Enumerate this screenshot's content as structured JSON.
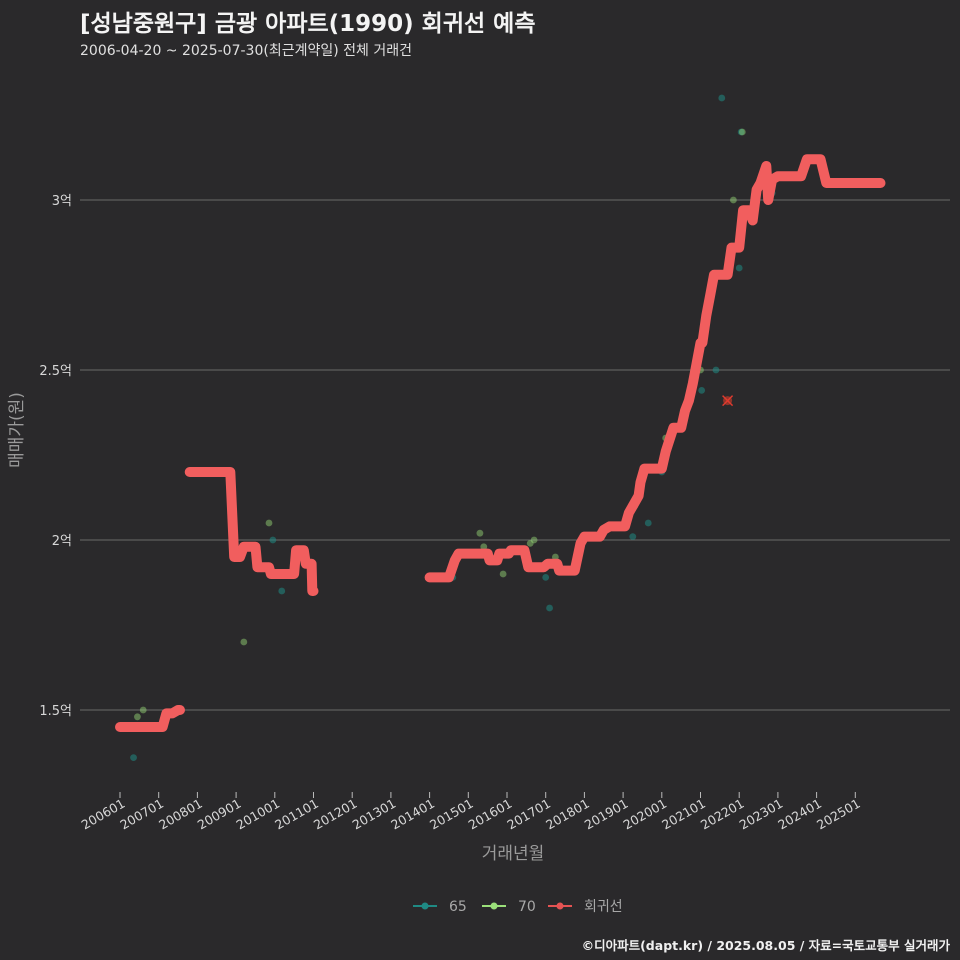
{
  "chart_data": {
    "type": "scatter+step-line",
    "title": "[성남중원구] 금광 아파트(1990) 회귀선 예측",
    "subtitle": "2006-04-20 ~ 2025-07-30(최근계약일) 전체 거래건",
    "xlabel": "거래년월",
    "ylabel": "매매가(원)",
    "caption": "©디아파트(dapt.kr) / 2025.08.05 / 자료=국토교통부 실거래가",
    "x_range": [
      2005.75,
      2026.5
    ],
    "ylim": [
      1.28,
      3.33
    ],
    "y_ticks": [
      {
        "value": 1.5,
        "label": "1.5억"
      },
      {
        "value": 2.0,
        "label": "2억"
      },
      {
        "value": 2.5,
        "label": "2.5억"
      },
      {
        "value": 3.0,
        "label": "3억"
      }
    ],
    "x_ticks": [
      {
        "value": 2006,
        "label": "200601"
      },
      {
        "value": 2007,
        "label": "200701"
      },
      {
        "value": 2008,
        "label": "200801"
      },
      {
        "value": 2009,
        "label": "200901"
      },
      {
        "value": 2010,
        "label": "201001"
      },
      {
        "value": 2011,
        "label": "201101"
      },
      {
        "value": 2012,
        "label": "201201"
      },
      {
        "value": 2013,
        "label": "201301"
      },
      {
        "value": 2014,
        "label": "201401"
      },
      {
        "value": 2015,
        "label": "201501"
      },
      {
        "value": 2016,
        "label": "201601"
      },
      {
        "value": 2017,
        "label": "201701"
      },
      {
        "value": 2018,
        "label": "201801"
      },
      {
        "value": 2019,
        "label": "201901"
      },
      {
        "value": 2020,
        "label": "202001"
      },
      {
        "value": 2021,
        "label": "202101"
      },
      {
        "value": 2022,
        "label": "202201"
      },
      {
        "value": 2023,
        "label": "202301"
      },
      {
        "value": 2024,
        "label": "202401"
      },
      {
        "value": 2025,
        "label": "202501"
      }
    ],
    "legend": [
      {
        "name": "65",
        "color": "#1f8a84"
      },
      {
        "name": "70",
        "color": "#9be07a"
      },
      {
        "name": "회귀선",
        "color": "#e55353"
      }
    ],
    "series": [
      {
        "name": "65",
        "points": [
          [
            2006.35,
            1.36
          ],
          [
            2009.95,
            2.0
          ],
          [
            2010.18,
            1.85
          ],
          [
            2014.6,
            1.89
          ],
          [
            2017.0,
            1.89
          ],
          [
            2017.1,
            1.8
          ],
          [
            2019.25,
            2.01
          ],
          [
            2019.65,
            2.05
          ],
          [
            2020.0,
            2.2
          ],
          [
            2021.03,
            2.44
          ],
          [
            2021.4,
            2.5
          ],
          [
            2021.55,
            3.3
          ],
          [
            2022.0,
            2.8
          ],
          [
            2022.05,
            3.2
          ],
          [
            2022.85,
            3.02
          ]
        ]
      },
      {
        "name": "70",
        "points": [
          [
            2006.45,
            1.48
          ],
          [
            2006.6,
            1.5
          ],
          [
            2009.2,
            1.7
          ],
          [
            2009.85,
            2.05
          ],
          [
            2015.3,
            2.02
          ],
          [
            2015.4,
            1.98
          ],
          [
            2015.9,
            1.9
          ],
          [
            2016.6,
            1.99
          ],
          [
            2016.7,
            2.0
          ],
          [
            2017.25,
            1.95
          ],
          [
            2019.3,
            2.1
          ],
          [
            2020.1,
            2.3
          ],
          [
            2021.0,
            2.5
          ],
          [
            2021.85,
            3.0
          ],
          [
            2022.08,
            3.2
          ]
        ]
      },
      {
        "name": "회귀선",
        "steps": [
          [
            2006.0,
            1.45
          ],
          [
            2007.1,
            1.45
          ],
          [
            2007.2,
            1.49
          ],
          [
            2007.35,
            1.49
          ],
          [
            2007.5,
            1.5
          ],
          [
            2007.55,
            1.5
          ],
          null,
          [
            2007.8,
            2.2
          ],
          [
            2008.85,
            2.2
          ],
          [
            2008.95,
            1.95
          ],
          [
            2009.1,
            1.95
          ],
          [
            2009.2,
            1.98
          ],
          [
            2009.5,
            1.98
          ],
          [
            2009.55,
            1.92
          ],
          [
            2009.85,
            1.92
          ],
          [
            2009.9,
            1.9
          ],
          [
            2010.5,
            1.9
          ],
          [
            2010.55,
            1.97
          ],
          [
            2010.75,
            1.97
          ],
          [
            2010.8,
            1.93
          ],
          [
            2010.95,
            1.93
          ],
          [
            2010.97,
            1.85
          ],
          [
            2011.0,
            1.85
          ],
          null,
          [
            2014.0,
            1.89
          ],
          [
            2014.5,
            1.89
          ],
          [
            2014.65,
            1.94
          ],
          [
            2014.75,
            1.96
          ],
          [
            2015.5,
            1.96
          ],
          [
            2015.55,
            1.94
          ],
          [
            2015.75,
            1.94
          ],
          [
            2015.8,
            1.96
          ],
          [
            2016.05,
            1.96
          ],
          [
            2016.1,
            1.97
          ],
          [
            2016.45,
            1.97
          ],
          [
            2016.55,
            1.92
          ],
          [
            2016.95,
            1.92
          ],
          [
            2017.05,
            1.93
          ],
          [
            2017.3,
            1.93
          ],
          [
            2017.35,
            1.91
          ],
          [
            2017.75,
            1.91
          ],
          [
            2017.9,
            1.99
          ],
          [
            2018.0,
            2.01
          ],
          [
            2018.4,
            2.01
          ],
          [
            2018.5,
            2.03
          ],
          [
            2018.65,
            2.04
          ],
          [
            2019.05,
            2.04
          ],
          [
            2019.15,
            2.08
          ],
          [
            2019.3,
            2.11
          ],
          [
            2019.4,
            2.13
          ],
          [
            2019.45,
            2.17
          ],
          [
            2019.55,
            2.21
          ],
          [
            2020.0,
            2.21
          ],
          [
            2020.1,
            2.26
          ],
          [
            2020.3,
            2.33
          ],
          [
            2020.5,
            2.33
          ],
          [
            2020.6,
            2.38
          ],
          [
            2020.7,
            2.41
          ],
          [
            2020.8,
            2.46
          ],
          [
            2021.0,
            2.58
          ],
          [
            2021.05,
            2.58
          ],
          [
            2021.15,
            2.66
          ],
          [
            2021.25,
            2.72
          ],
          [
            2021.35,
            2.78
          ],
          [
            2021.7,
            2.78
          ],
          [
            2021.8,
            2.86
          ],
          [
            2022.0,
            2.86
          ],
          [
            2022.1,
            2.97
          ],
          [
            2022.25,
            2.97
          ],
          [
            2022.35,
            2.94
          ],
          [
            2022.45,
            3.03
          ],
          [
            2022.55,
            3.05
          ],
          [
            2022.7,
            3.1
          ],
          [
            2022.75,
            3.0
          ],
          [
            2022.85,
            3.06
          ],
          [
            2023.0,
            3.07
          ],
          [
            2023.6,
            3.07
          ],
          [
            2023.75,
            3.12
          ],
          [
            2024.1,
            3.12
          ],
          [
            2024.25,
            3.05
          ],
          [
            2025.05,
            3.05
          ],
          [
            2025.65,
            3.05
          ]
        ]
      }
    ],
    "outlier": {
      "x": 2021.7,
      "y": 2.41
    }
  },
  "colors": {
    "background": "#2a292b",
    "grid": "#6a6a6a",
    "line": "#f15e5e",
    "p65": "#1f8a84",
    "p70": "#9be07a"
  }
}
